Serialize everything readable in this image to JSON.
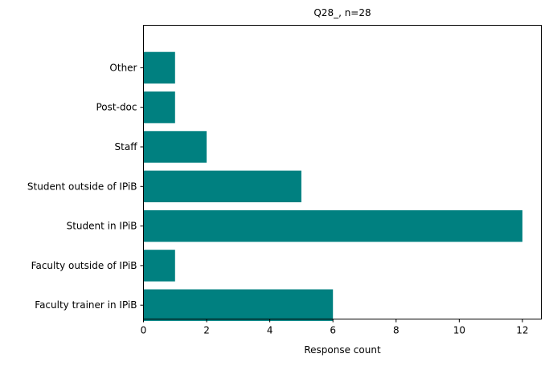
{
  "chart_data": {
    "type": "bar",
    "orientation": "horizontal",
    "title": "Q28_, n=28",
    "xlabel": "Response count",
    "ylabel": "",
    "categories": [
      "Faculty trainer in IPiB",
      "Faculty outside of IPiB",
      "Student in IPiB",
      "Student outside of IPiB",
      "Staff",
      "Post-doc",
      "Other"
    ],
    "values": [
      6,
      1,
      12,
      5,
      2,
      1,
      1
    ],
    "xlim": [
      0,
      12.6
    ],
    "xticks": [
      "0",
      "2",
      "4",
      "6",
      "8",
      "10",
      "12"
    ],
    "grid": false,
    "colors": {
      "bar": "#008080",
      "axis": "#000000",
      "background": "#ffffff"
    }
  }
}
